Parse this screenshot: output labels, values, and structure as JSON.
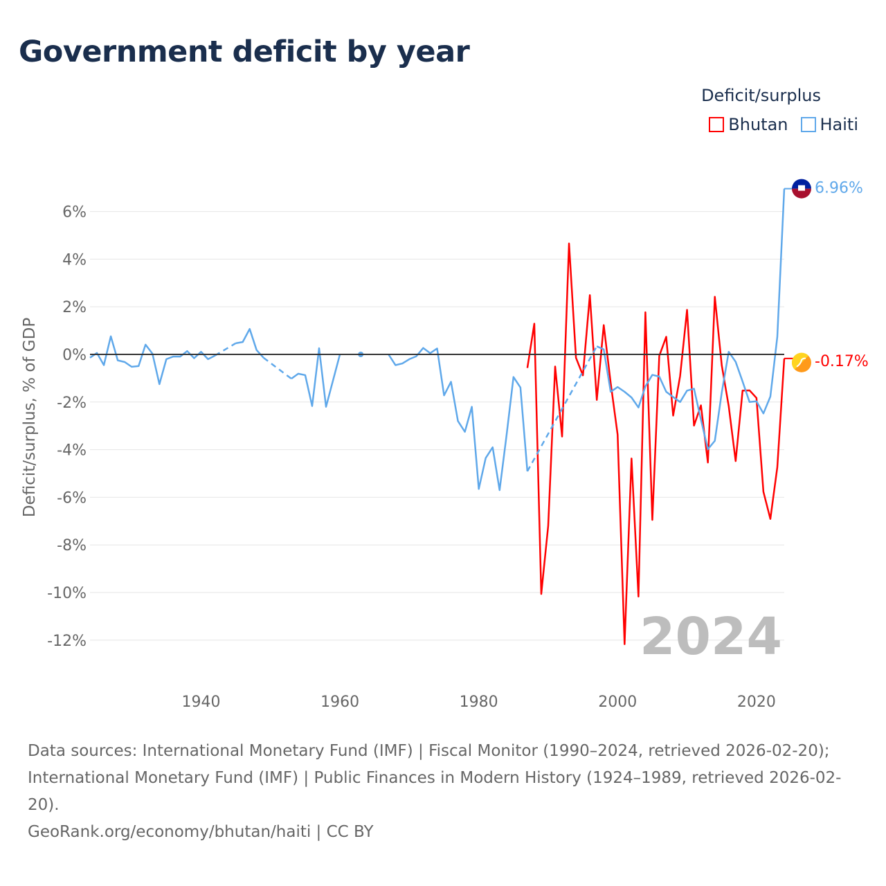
{
  "title": "Government deficit by year",
  "legend": {
    "title": "Deficit/surplus",
    "items": [
      {
        "name": "Bhutan",
        "color": "#ff0000"
      },
      {
        "name": "Haiti",
        "color": "#5fa8ea"
      }
    ]
  },
  "footer": {
    "line1": "Data sources: International Monetary Fund (IMF) | Fiscal Monitor (1990–2024, retrieved 2026-02-20); International Monetary Fund (IMF) | Public Finances in Modern History (1924–1989, retrieved 2026-02-20).",
    "line2": "GeoRank.org/economy/bhutan/haiti | CC BY"
  },
  "chart_data": {
    "type": "line",
    "title": "Government deficit by year",
    "ylabel": "Deficit/surplus, % of GDP",
    "xlabel": "",
    "xlim": [
      1924,
      2024
    ],
    "ylim": [
      -13,
      7.5
    ],
    "x_ticks": [
      1940,
      1960,
      1980,
      2000,
      2020
    ],
    "y_ticks": [
      6,
      4,
      2,
      0,
      -2,
      -4,
      -6,
      -8,
      -10,
      -12
    ],
    "y_tick_labels": [
      "6%",
      "4%",
      "2%",
      "0%",
      "-2%",
      "-4%",
      "-6%",
      "-8%",
      "-10%",
      "-12%"
    ],
    "current_year_label": "2024",
    "grid": true,
    "legend_position": "top-right",
    "series": [
      {
        "name": "Haiti",
        "color": "#5fa8ea",
        "end_label": "6.96%",
        "start_year": 1924,
        "interpolated_gaps": [
          [
            1942,
            1945
          ],
          [
            1949,
            1953
          ],
          [
            1987,
            1997
          ]
        ],
        "values": [
          -0.14,
          0.06,
          -0.45,
          0.76,
          -0.25,
          -0.32,
          -0.52,
          -0.49,
          0.41,
          0.03,
          -1.25,
          -0.2,
          -0.09,
          -0.09,
          0.14,
          -0.16,
          0.11,
          -0.2,
          -0.05,
          null,
          null,
          0.47,
          0.52,
          1.07,
          0.18,
          -0.14,
          null,
          null,
          null,
          -1.02,
          -0.81,
          -0.87,
          -2.17,
          0.26,
          -2.2,
          -1.1,
          0,
          null,
          null,
          0,
          null,
          null,
          null,
          0,
          -0.45,
          -0.38,
          -0.2,
          -0.08,
          0.27,
          0.05,
          0.25,
          -1.72,
          -1.15,
          -2.8,
          -3.25,
          -2.2,
          -5.65,
          -4.35,
          -3.9,
          -5.7,
          -3.4,
          -0.95,
          -1.39,
          -4.91,
          null,
          null,
          null,
          null,
          null,
          null,
          null,
          null,
          null,
          0.34,
          0.21,
          -1.57,
          -1.37,
          -1.57,
          -1.81,
          -2.23,
          -1.34,
          -0.86,
          -0.93,
          -1.57,
          -1.79,
          -2.0,
          -1.52,
          -1.44,
          -2.74,
          -3.98,
          -3.63,
          -1.6,
          0.11,
          -0.31,
          -1.14,
          -2.0,
          -1.97,
          -2.48,
          -1.77,
          0.74,
          6.96
        ]
      },
      {
        "name": "Bhutan",
        "color": "#ff0000",
        "end_label": "-0.17%",
        "start_year": 1987,
        "interpolated_gaps": [],
        "values": [
          -0.57,
          1.29,
          -10.06,
          -7.2,
          -0.51,
          -3.45,
          4.66,
          -0.14,
          -0.88,
          2.49,
          -1.91,
          1.23,
          -1.2,
          -3.37,
          -12.17,
          -4.37,
          -10.17,
          1.77,
          -6.95,
          -0.06,
          0.74,
          -2.57,
          -0.91,
          1.87,
          -2.99,
          -2.14,
          -4.54,
          2.42,
          -0.46,
          -2.17,
          -4.48,
          -1.52,
          -1.51,
          -1.83,
          -5.77,
          -6.91,
          -4.74,
          -0.17
        ]
      }
    ]
  }
}
